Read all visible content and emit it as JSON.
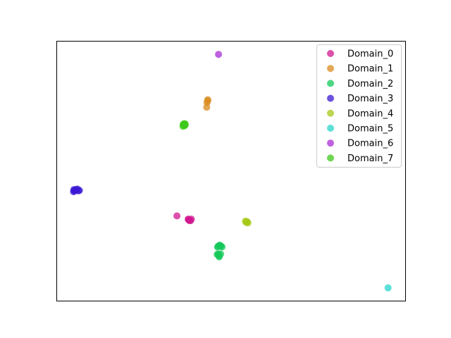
{
  "chart_data": {
    "type": "scatter",
    "title": "",
    "xlabel": "",
    "ylabel": "",
    "xlim": [
      0,
      100
    ],
    "ylim": [
      0,
      100
    ],
    "grid": false,
    "axes_ticks": false,
    "legend_position": "top-right",
    "series": [
      {
        "name": "Domain_0",
        "color": "#d0178f",
        "points": [
          [
            34.5,
            32.8
          ],
          [
            38.0,
            31.3
          ],
          [
            37.7,
            31.6
          ],
          [
            38.4,
            31.0
          ],
          [
            38.1,
            31.0
          ],
          [
            37.8,
            31.3
          ],
          [
            38.6,
            31.6
          ]
        ]
      },
      {
        "name": "Domain_1",
        "color": "#d98b1e",
        "points": [
          [
            43.3,
            77.4
          ],
          [
            43.1,
            76.3
          ],
          [
            43.0,
            74.5
          ],
          [
            43.3,
            77.0
          ]
        ]
      },
      {
        "name": "Domain_2",
        "color": "#14c85a",
        "points": [
          [
            46.0,
            18.0
          ],
          [
            47.0,
            18.2
          ],
          [
            46.5,
            17.5
          ],
          [
            46.3,
            21.2
          ],
          [
            46.7,
            21.6
          ],
          [
            47.4,
            20.9
          ],
          [
            46.9,
            21.4
          ],
          [
            46.6,
            17.1
          ],
          [
            46.5,
            17.8
          ],
          [
            46.3,
            18.2
          ],
          [
            46.1,
            20.8
          ],
          [
            47.1,
            21.2
          ]
        ]
      },
      {
        "name": "Domain_3",
        "color": "#3b18d4",
        "points": [
          [
            5.0,
            42.9
          ],
          [
            6.0,
            43.1
          ],
          [
            5.2,
            42.4
          ],
          [
            5.6,
            42.9
          ],
          [
            6.3,
            42.4
          ],
          [
            4.9,
            42.1
          ],
          [
            5.3,
            42.6
          ],
          [
            6.6,
            42.6
          ]
        ]
      },
      {
        "name": "Domain_4",
        "color": "#a6c81a",
        "points": [
          [
            54.1,
            30.8
          ],
          [
            54.6,
            30.5
          ],
          [
            54.8,
            30.1
          ],
          [
            54.3,
            30.3
          ],
          [
            54.5,
            30.6
          ]
        ]
      },
      {
        "name": "Domain_5",
        "color": "#27d4c9",
        "points": [
          [
            94.9,
            5.2
          ]
        ]
      },
      {
        "name": "Domain_6",
        "color": "#a92ed6",
        "points": [
          [
            46.4,
            94.8
          ]
        ]
      },
      {
        "name": "Domain_7",
        "color": "#3ec81a",
        "points": [
          [
            36.3,
            67.9
          ],
          [
            36.7,
            67.4
          ],
          [
            36.5,
            68.2
          ],
          [
            36.9,
            67.8
          ],
          [
            36.2,
            67.2
          ],
          [
            36.6,
            67.6
          ],
          [
            36.8,
            68.2
          ]
        ]
      }
    ]
  }
}
